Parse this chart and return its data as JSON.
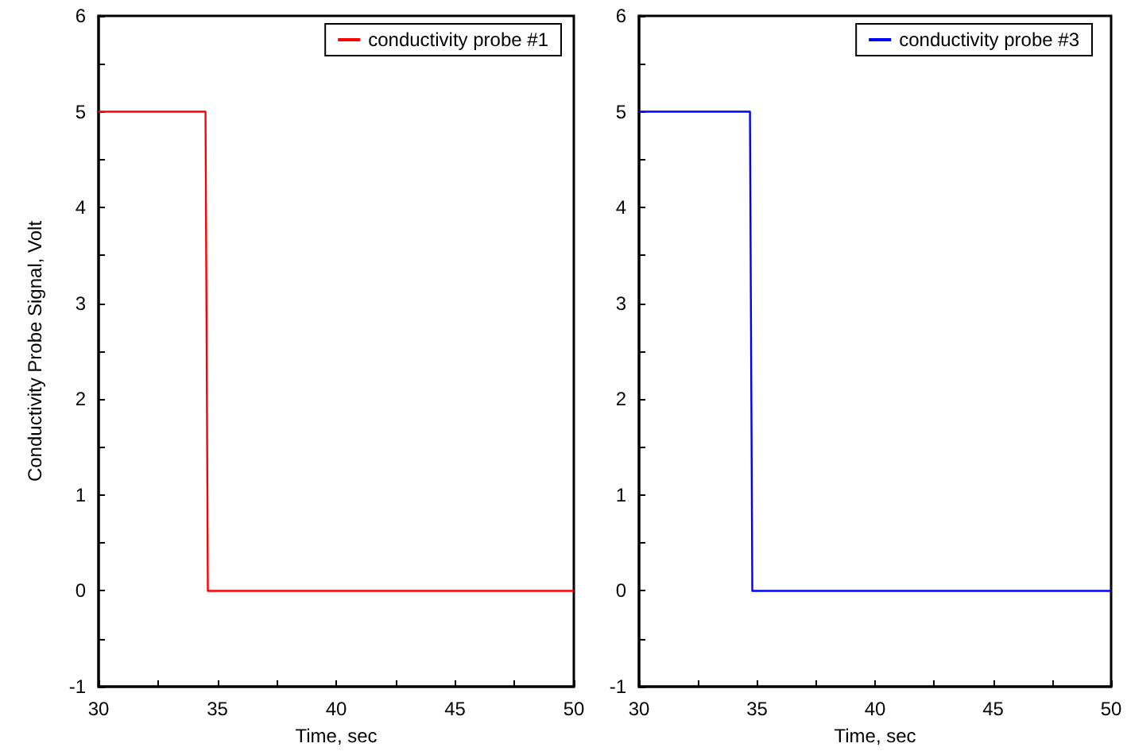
{
  "chart_data": [
    {
      "type": "line",
      "ylabel": "Conductivity Probe Signal, Volt",
      "xlabel": "Time, sec",
      "legend": "top right",
      "marker": "none",
      "xlim": [
        30,
        50
      ],
      "xticks": [
        30,
        {
          "value": 32.5,
          "label": null
        },
        35,
        {
          "value": 37.5,
          "label": null
        },
        40,
        {
          "value": 42.5,
          "label": null
        },
        45,
        {
          "value": 47.5,
          "label": null
        },
        50
      ],
      "ylim": [
        -1,
        6
      ],
      "yticks": [
        -1,
        {
          "value": -0.5,
          "label": null
        },
        0,
        {
          "value": 0.5,
          "label": null
        },
        1,
        {
          "value": 1.5,
          "label": null
        },
        2,
        {
          "value": 2.5,
          "label": null
        },
        3,
        {
          "value": 3.5,
          "label": null
        },
        4,
        {
          "value": 4.5,
          "label": null
        },
        5,
        {
          "value": 5.5,
          "label": null
        },
        6
      ],
      "series": [
        {
          "name": "conductivity probe #1",
          "color": "#ff0000",
          "x": [
            30,
            34.5,
            34.6,
            50
          ],
          "values": [
            5,
            5,
            0,
            0
          ]
        }
      ]
    },
    {
      "type": "line",
      "xlabel": "Time, sec",
      "legend": "top right",
      "marker": "none",
      "xlim": [
        30,
        50
      ],
      "xticks": [
        30,
        {
          "value": 32.5,
          "label": null
        },
        35,
        {
          "value": 37.5,
          "label": null
        },
        40,
        {
          "value": 42.5,
          "label": null
        },
        45,
        {
          "value": 47.5,
          "label": null
        },
        50
      ],
      "ylim": [
        -1,
        6
      ],
      "yticks": [
        -1,
        {
          "value": -0.5,
          "label": null
        },
        0,
        {
          "value": 0.5,
          "label": null
        },
        1,
        {
          "value": 1.5,
          "label": null
        },
        2,
        {
          "value": 2.5,
          "label": null
        },
        3,
        {
          "value": 3.5,
          "label": null
        },
        4,
        {
          "value": 4.5,
          "label": null
        },
        5,
        {
          "value": 5.5,
          "label": null
        },
        6
      ],
      "series": [
        {
          "name": "conductivity probe #3",
          "color": "#0000ff",
          "x": [
            30,
            34.7,
            34.8,
            50
          ],
          "values": [
            5,
            5,
            0,
            0
          ]
        }
      ]
    }
  ]
}
